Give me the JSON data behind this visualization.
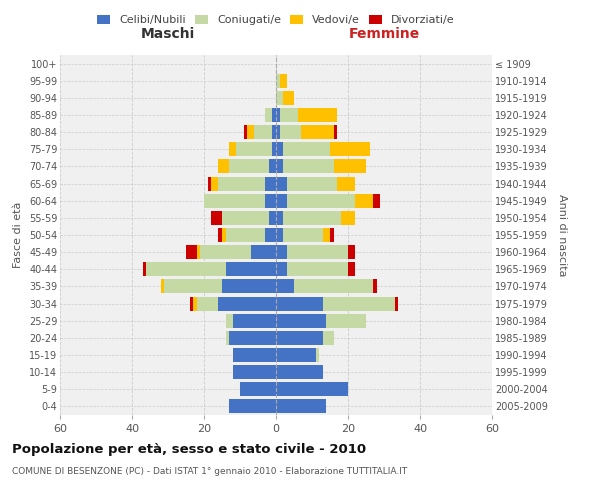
{
  "age_groups": [
    "0-4",
    "5-9",
    "10-14",
    "15-19",
    "20-24",
    "25-29",
    "30-34",
    "35-39",
    "40-44",
    "45-49",
    "50-54",
    "55-59",
    "60-64",
    "65-69",
    "70-74",
    "75-79",
    "80-84",
    "85-89",
    "90-94",
    "95-99",
    "100+"
  ],
  "birth_years": [
    "2005-2009",
    "2000-2004",
    "1995-1999",
    "1990-1994",
    "1985-1989",
    "1980-1984",
    "1975-1979",
    "1970-1974",
    "1965-1969",
    "1960-1964",
    "1955-1959",
    "1950-1954",
    "1945-1949",
    "1940-1944",
    "1935-1939",
    "1930-1934",
    "1925-1929",
    "1920-1924",
    "1915-1919",
    "1910-1914",
    "≤ 1909"
  ],
  "maschi": {
    "celibi": [
      13,
      10,
      12,
      12,
      13,
      12,
      16,
      15,
      14,
      7,
      3,
      2,
      3,
      3,
      2,
      1,
      1,
      1,
      0,
      0,
      0
    ],
    "coniugati": [
      0,
      0,
      0,
      0,
      1,
      2,
      6,
      16,
      22,
      14,
      11,
      13,
      17,
      13,
      11,
      10,
      5,
      2,
      0,
      0,
      0
    ],
    "vedovi": [
      0,
      0,
      0,
      0,
      0,
      0,
      1,
      1,
      0,
      1,
      1,
      0,
      0,
      2,
      3,
      2,
      2,
      0,
      0,
      0,
      0
    ],
    "divorziati": [
      0,
      0,
      0,
      0,
      0,
      0,
      1,
      0,
      1,
      3,
      1,
      3,
      0,
      1,
      0,
      0,
      1,
      0,
      0,
      0,
      0
    ]
  },
  "femmine": {
    "nubili": [
      14,
      20,
      13,
      11,
      13,
      14,
      13,
      5,
      3,
      3,
      2,
      2,
      3,
      3,
      2,
      2,
      1,
      1,
      0,
      0,
      0
    ],
    "coniugate": [
      0,
      0,
      0,
      1,
      3,
      11,
      20,
      22,
      17,
      17,
      11,
      16,
      19,
      14,
      14,
      13,
      6,
      5,
      2,
      1,
      0
    ],
    "vedove": [
      0,
      0,
      0,
      0,
      0,
      0,
      0,
      0,
      0,
      0,
      2,
      4,
      5,
      5,
      9,
      11,
      9,
      11,
      3,
      2,
      0
    ],
    "divorziate": [
      0,
      0,
      0,
      0,
      0,
      0,
      1,
      1,
      2,
      2,
      1,
      0,
      2,
      0,
      0,
      0,
      1,
      0,
      0,
      0,
      0
    ]
  },
  "colors": {
    "celibi": "#4472c4",
    "coniugati": "#c5d9a4",
    "vedovi": "#ffc000",
    "divorziati": "#cc0000"
  },
  "xlim": 60,
  "title": "Popolazione per età, sesso e stato civile - 2010",
  "subtitle": "COMUNE DI BESENZONE (PC) - Dati ISTAT 1° gennaio 2010 - Elaborazione TUTTITALIA.IT",
  "ylabel_left": "Fasce di età",
  "ylabel_right": "Anni di nascita",
  "xlabel_left": "Maschi",
  "xlabel_right": "Femmine",
  "bg_color": "#f0f0f0",
  "grid_color": "#cccccc"
}
